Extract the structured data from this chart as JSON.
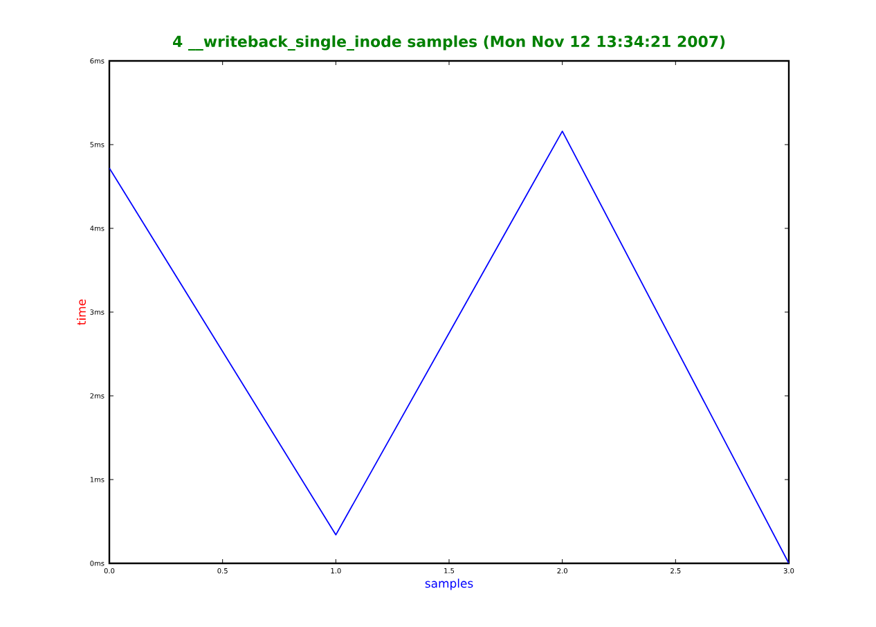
{
  "chart_data": {
    "type": "line",
    "title": "4 __writeback_single_inode samples (Mon Nov 12 13:34:21 2007)",
    "xlabel": "samples",
    "ylabel": "time",
    "x": [
      0,
      1,
      2,
      3
    ],
    "series": [
      {
        "color": "#0000ff",
        "values": [
          4.72,
          0.34,
          5.16,
          0
        ]
      }
    ],
    "xlim": [
      0,
      3
    ],
    "ylim": [
      0,
      6
    ],
    "xticks": [
      {
        "value": 0,
        "label": "0.0"
      },
      {
        "value": 0.5,
        "label": "0.5"
      },
      {
        "value": 1,
        "label": "1.0"
      },
      {
        "value": 1.5,
        "label": "1.5"
      },
      {
        "value": 2,
        "label": "2.0"
      },
      {
        "value": 2.5,
        "label": "2.5"
      },
      {
        "value": 3,
        "label": "3.0"
      }
    ],
    "yticks": [
      {
        "value": 0,
        "label": "0ms"
      },
      {
        "value": 1,
        "label": "1ms"
      },
      {
        "value": 2,
        "label": "2ms"
      },
      {
        "value": 3,
        "label": "3ms"
      },
      {
        "value": 4,
        "label": "4ms"
      },
      {
        "value": 5,
        "label": "5ms"
      },
      {
        "value": 6,
        "label": "6ms"
      }
    ],
    "grid": false,
    "marker": "none",
    "line_style": "solid"
  }
}
